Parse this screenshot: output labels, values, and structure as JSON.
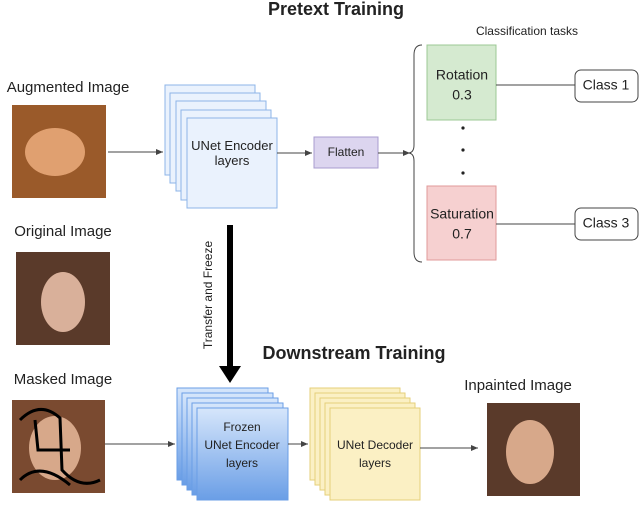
{
  "title": "Pretext Training",
  "subtitle": "Downstream Training",
  "classification_header": "Classification tasks",
  "images": {
    "augmented": "Augmented Image",
    "original": "Original Image",
    "masked": "Masked Image",
    "inpainted": "Inpainted Image"
  },
  "encoder": "UNet Encoder layers",
  "flatten": "Flatten",
  "tasks": [
    {
      "name": "Rotation",
      "value": "0.3",
      "class": "Class 1"
    },
    {
      "name": "Saturation",
      "value": "0.7",
      "class": "Class 3"
    }
  ],
  "transfer": "Transfer and Freeze",
  "frozen": {
    "line1": "Frozen",
    "line2": "UNet Encoder",
    "line3": "layers"
  },
  "decoder": {
    "line1": "UNet Decoder",
    "line2": "layers"
  }
}
